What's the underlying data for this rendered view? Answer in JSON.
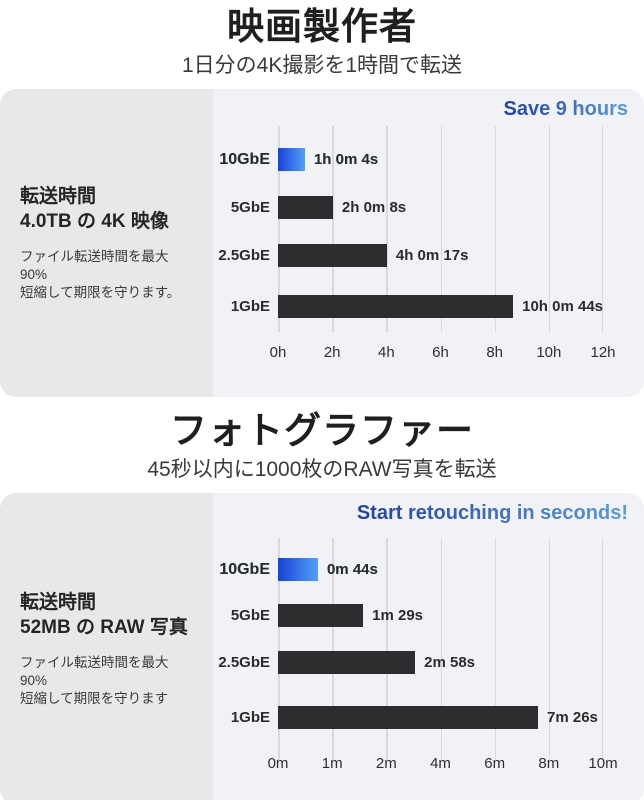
{
  "colors": {
    "title_text": "#1f1f1f",
    "subtitle_text": "#3a3a3a",
    "sidebar_bg": "#e8e8ea",
    "chart_bg": "#f1f2f6",
    "gridline": "#d8d8dd",
    "bar_dark": "#2d2d2f",
    "label_dark": "#2b2b2b",
    "bar_blue_start": "#1543d6",
    "bar_blue_end": "#55a0f6",
    "text_blue_start": "#1b49cf",
    "text_blue_end": "#68a7ea"
  },
  "chart_data": [
    {
      "type": "bar",
      "orientation": "horizontal",
      "title": "映画製作者",
      "subtitle": "1日分の4K撮影を1時間で転送",
      "headline": "Save 9 hours",
      "sidebar": {
        "heading_line1": "転送時間",
        "heading_line2": "4.0TB の 4K 映像",
        "note_line1": "ファイル転送時間を最大 90%",
        "note_line2": "短縮して期限を守ります。"
      },
      "categories": [
        "10GbE",
        "5GbE",
        "2.5GbE",
        "1GbE"
      ],
      "values": [
        "1h 0m 4s",
        "2h 0m 8s",
        "4h 0m 17s",
        "10h 0m 44s"
      ],
      "values_seconds": [
        3604,
        7208,
        14417,
        36044
      ],
      "x_ticks": [
        "0h",
        "2h",
        "4h",
        "6h",
        "8h",
        "10h",
        "12h"
      ],
      "x_range": [
        0,
        12
      ],
      "x_unit": "hours",
      "bar_widths_pct": [
        8.3,
        16.9,
        33.5,
        84.3
      ],
      "highlight_index": 0,
      "grid": true,
      "legend": false
    },
    {
      "type": "bar",
      "orientation": "horizontal",
      "title": "フォトグラファー",
      "subtitle": "45秒以内に1000枚のRAW写真を転送",
      "headline": "Start retouching in seconds!",
      "sidebar": {
        "heading_line1": "転送時間",
        "heading_line2": "52MB の RAW 写真",
        "note_line1": "ファイル転送時間を最大 90%",
        "note_line2": "短縮して期限を守ります"
      },
      "categories": [
        "10GbE",
        "5GbE",
        "2.5GbE",
        "1GbE"
      ],
      "values": [
        "0m 44s",
        "1m 29s",
        "2m 58s",
        "7m 26s"
      ],
      "values_seconds": [
        44,
        89,
        178,
        446
      ],
      "x_ticks": [
        "0m",
        "1m",
        "2m",
        "4m",
        "6m",
        "8m",
        "10m"
      ],
      "x_unit": "minutes",
      "x_scale_note": "tick labels non-linear but evenly spaced",
      "bar_widths_pct": [
        12.3,
        26.2,
        42.2,
        80.0
      ],
      "highlight_index": 0,
      "grid": true,
      "legend": false
    }
  ]
}
